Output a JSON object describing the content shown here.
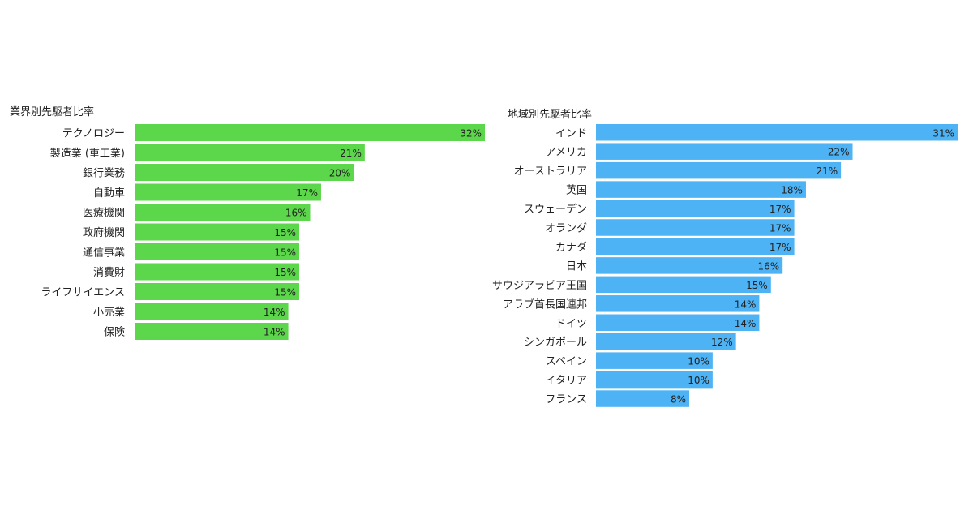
{
  "chart_data": [
    {
      "type": "bar",
      "orientation": "horizontal",
      "title": "業界別先駆者比率",
      "color": "#5cd64a",
      "value_suffix": "%",
      "categories": [
        "テクノロジー",
        "製造業 (重工業)",
        "銀行業務",
        "自動車",
        "医療機関",
        "政府機関",
        "通信事業",
        "消費財",
        "ライフサイエンス",
        "小売業",
        "保険"
      ],
      "values": [
        32,
        21,
        20,
        17,
        16,
        15,
        15,
        15,
        15,
        14,
        14
      ],
      "labels": [
        "32%",
        "21%",
        "20%",
        "17%",
        "16%",
        "15%",
        "15%",
        "15%",
        "15%",
        "14%",
        "14%"
      ],
      "xlim": [
        0,
        32
      ],
      "grid": false,
      "legend": "none"
    },
    {
      "type": "bar",
      "orientation": "horizontal",
      "title": "地域別先駆者比率",
      "color": "#4db3f5",
      "value_suffix": "%",
      "categories": [
        "インド",
        "アメリカ",
        "オーストラリア",
        "英国",
        "スウェーデン",
        "オランダ",
        "カナダ",
        "日本",
        "サウジアラビア王国",
        "アラブ首長国連邦",
        "ドイツ",
        "シンガポール",
        "スペイン",
        "イタリア",
        "フランス"
      ],
      "values": [
        31,
        22,
        21,
        18,
        17,
        17,
        17,
        16,
        15,
        14,
        14,
        12,
        10,
        10,
        8
      ],
      "labels": [
        "31%",
        "22%",
        "21%",
        "18%",
        "17%",
        "17%",
        "17%",
        "16%",
        "15%",
        "14%",
        "14%",
        "12%",
        "10%",
        "10%",
        "8%"
      ],
      "xlim": [
        0,
        31
      ],
      "grid": false,
      "legend": "none"
    }
  ]
}
